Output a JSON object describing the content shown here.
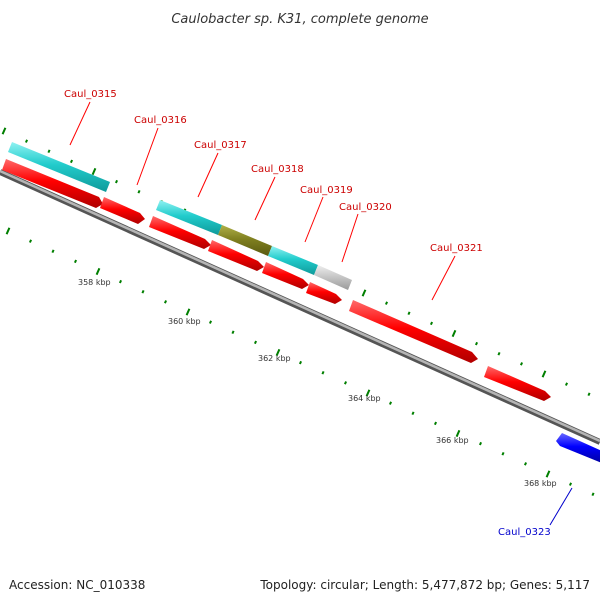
{
  "title": "Caulobacter sp. K31, complete genome",
  "footer": {
    "accession": "Accession: NC_010338",
    "summary": "Topology: circular; Length: 5,477,872 bp; Genes: 5,117"
  },
  "colors": {
    "forward_cds": "#ff0000",
    "reverse_cds": "#0000ff",
    "rna": "#00cccc",
    "overlap": "#808000",
    "other": "#c8c8c8",
    "backbone": "#7f7f7f",
    "tick": "#007f00",
    "forward_label": "#cc0000",
    "reverse_label": "#0000cc"
  },
  "ruler_labels": [
    {
      "id": "t358",
      "text": "358 kbp"
    },
    {
      "id": "t360",
      "text": "360 kbp"
    },
    {
      "id": "t362",
      "text": "362 kbp"
    },
    {
      "id": "t364",
      "text": "364 kbp"
    },
    {
      "id": "t366",
      "text": "366 kbp"
    },
    {
      "id": "t368",
      "text": "368 kbp"
    }
  ],
  "gene_labels": [
    {
      "id": "g0315",
      "text": "Caul_0315",
      "strand": "forward"
    },
    {
      "id": "g0316",
      "text": "Caul_0316",
      "strand": "forward"
    },
    {
      "id": "g0317",
      "text": "Caul_0317",
      "strand": "forward"
    },
    {
      "id": "g0318",
      "text": "Caul_0318",
      "strand": "forward"
    },
    {
      "id": "g0319",
      "text": "Caul_0319",
      "strand": "forward"
    },
    {
      "id": "g0320",
      "text": "Caul_0320",
      "strand": "forward"
    },
    {
      "id": "g0321",
      "text": "Caul_0321",
      "strand": "forward"
    },
    {
      "id": "g0323",
      "text": "Caul_0323",
      "strand": "reverse"
    }
  ]
}
